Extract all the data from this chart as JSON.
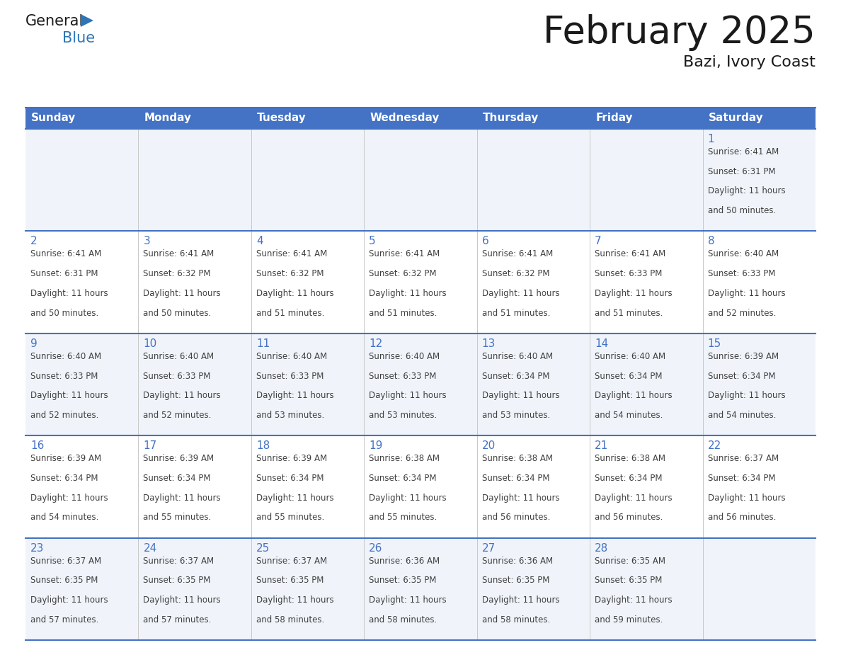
{
  "title": "February 2025",
  "subtitle": "Bazi, Ivory Coast",
  "header_bg": "#4472C4",
  "header_text_color": "#FFFFFF",
  "day_names": [
    "Sunday",
    "Monday",
    "Tuesday",
    "Wednesday",
    "Thursday",
    "Friday",
    "Saturday"
  ],
  "row_bg": [
    "#F0F4FA",
    "#FFFFFF",
    "#F0F4FA",
    "#FFFFFF",
    "#F0F4FA"
  ],
  "cell_border_color": "#4472C4",
  "number_color": "#4472C4",
  "info_color": "#404040",
  "logo_general_color": "#1A1A1A",
  "logo_blue_color": "#2E75B6",
  "days": [
    {
      "day": 1,
      "col": 6,
      "row": 0,
      "sunrise": "6:41 AM",
      "sunset": "6:31 PM",
      "daylight_h": "11 hours",
      "daylight_m": "and 50 minutes."
    },
    {
      "day": 2,
      "col": 0,
      "row": 1,
      "sunrise": "6:41 AM",
      "sunset": "6:31 PM",
      "daylight_h": "11 hours",
      "daylight_m": "and 50 minutes."
    },
    {
      "day": 3,
      "col": 1,
      "row": 1,
      "sunrise": "6:41 AM",
      "sunset": "6:32 PM",
      "daylight_h": "11 hours",
      "daylight_m": "and 50 minutes."
    },
    {
      "day": 4,
      "col": 2,
      "row": 1,
      "sunrise": "6:41 AM",
      "sunset": "6:32 PM",
      "daylight_h": "11 hours",
      "daylight_m": "and 51 minutes."
    },
    {
      "day": 5,
      "col": 3,
      "row": 1,
      "sunrise": "6:41 AM",
      "sunset": "6:32 PM",
      "daylight_h": "11 hours",
      "daylight_m": "and 51 minutes."
    },
    {
      "day": 6,
      "col": 4,
      "row": 1,
      "sunrise": "6:41 AM",
      "sunset": "6:32 PM",
      "daylight_h": "11 hours",
      "daylight_m": "and 51 minutes."
    },
    {
      "day": 7,
      "col": 5,
      "row": 1,
      "sunrise": "6:41 AM",
      "sunset": "6:33 PM",
      "daylight_h": "11 hours",
      "daylight_m": "and 51 minutes."
    },
    {
      "day": 8,
      "col": 6,
      "row": 1,
      "sunrise": "6:40 AM",
      "sunset": "6:33 PM",
      "daylight_h": "11 hours",
      "daylight_m": "and 52 minutes."
    },
    {
      "day": 9,
      "col": 0,
      "row": 2,
      "sunrise": "6:40 AM",
      "sunset": "6:33 PM",
      "daylight_h": "11 hours",
      "daylight_m": "and 52 minutes."
    },
    {
      "day": 10,
      "col": 1,
      "row": 2,
      "sunrise": "6:40 AM",
      "sunset": "6:33 PM",
      "daylight_h": "11 hours",
      "daylight_m": "and 52 minutes."
    },
    {
      "day": 11,
      "col": 2,
      "row": 2,
      "sunrise": "6:40 AM",
      "sunset": "6:33 PM",
      "daylight_h": "11 hours",
      "daylight_m": "and 53 minutes."
    },
    {
      "day": 12,
      "col": 3,
      "row": 2,
      "sunrise": "6:40 AM",
      "sunset": "6:33 PM",
      "daylight_h": "11 hours",
      "daylight_m": "and 53 minutes."
    },
    {
      "day": 13,
      "col": 4,
      "row": 2,
      "sunrise": "6:40 AM",
      "sunset": "6:34 PM",
      "daylight_h": "11 hours",
      "daylight_m": "and 53 minutes."
    },
    {
      "day": 14,
      "col": 5,
      "row": 2,
      "sunrise": "6:40 AM",
      "sunset": "6:34 PM",
      "daylight_h": "11 hours",
      "daylight_m": "and 54 minutes."
    },
    {
      "day": 15,
      "col": 6,
      "row": 2,
      "sunrise": "6:39 AM",
      "sunset": "6:34 PM",
      "daylight_h": "11 hours",
      "daylight_m": "and 54 minutes."
    },
    {
      "day": 16,
      "col": 0,
      "row": 3,
      "sunrise": "6:39 AM",
      "sunset": "6:34 PM",
      "daylight_h": "11 hours",
      "daylight_m": "and 54 minutes."
    },
    {
      "day": 17,
      "col": 1,
      "row": 3,
      "sunrise": "6:39 AM",
      "sunset": "6:34 PM",
      "daylight_h": "11 hours",
      "daylight_m": "and 55 minutes."
    },
    {
      "day": 18,
      "col": 2,
      "row": 3,
      "sunrise": "6:39 AM",
      "sunset": "6:34 PM",
      "daylight_h": "11 hours",
      "daylight_m": "and 55 minutes."
    },
    {
      "day": 19,
      "col": 3,
      "row": 3,
      "sunrise": "6:38 AM",
      "sunset": "6:34 PM",
      "daylight_h": "11 hours",
      "daylight_m": "and 55 minutes."
    },
    {
      "day": 20,
      "col": 4,
      "row": 3,
      "sunrise": "6:38 AM",
      "sunset": "6:34 PM",
      "daylight_h": "11 hours",
      "daylight_m": "and 56 minutes."
    },
    {
      "day": 21,
      "col": 5,
      "row": 3,
      "sunrise": "6:38 AM",
      "sunset": "6:34 PM",
      "daylight_h": "11 hours",
      "daylight_m": "and 56 minutes."
    },
    {
      "day": 22,
      "col": 6,
      "row": 3,
      "sunrise": "6:37 AM",
      "sunset": "6:34 PM",
      "daylight_h": "11 hours",
      "daylight_m": "and 56 minutes."
    },
    {
      "day": 23,
      "col": 0,
      "row": 4,
      "sunrise": "6:37 AM",
      "sunset": "6:35 PM",
      "daylight_h": "11 hours",
      "daylight_m": "and 57 minutes."
    },
    {
      "day": 24,
      "col": 1,
      "row": 4,
      "sunrise": "6:37 AM",
      "sunset": "6:35 PM",
      "daylight_h": "11 hours",
      "daylight_m": "and 57 minutes."
    },
    {
      "day": 25,
      "col": 2,
      "row": 4,
      "sunrise": "6:37 AM",
      "sunset": "6:35 PM",
      "daylight_h": "11 hours",
      "daylight_m": "and 58 minutes."
    },
    {
      "day": 26,
      "col": 3,
      "row": 4,
      "sunrise": "6:36 AM",
      "sunset": "6:35 PM",
      "daylight_h": "11 hours",
      "daylight_m": "and 58 minutes."
    },
    {
      "day": 27,
      "col": 4,
      "row": 4,
      "sunrise": "6:36 AM",
      "sunset": "6:35 PM",
      "daylight_h": "11 hours",
      "daylight_m": "and 58 minutes."
    },
    {
      "day": 28,
      "col": 5,
      "row": 4,
      "sunrise": "6:35 AM",
      "sunset": "6:35 PM",
      "daylight_h": "11 hours",
      "daylight_m": "and 59 minutes."
    }
  ]
}
